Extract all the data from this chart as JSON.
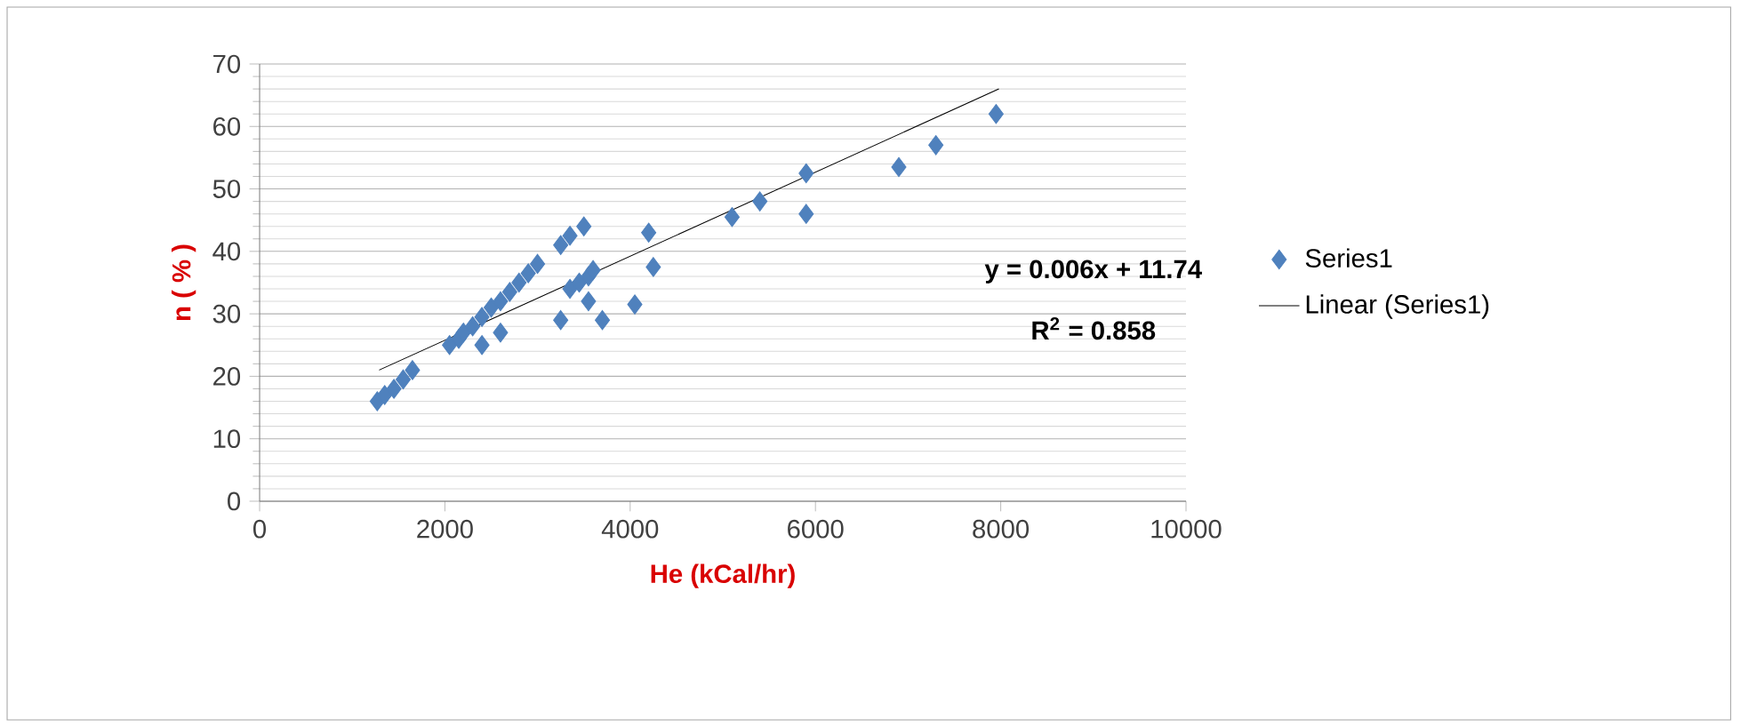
{
  "chart_data": {
    "type": "scatter",
    "xlabel": "He (kCal/hr)",
    "ylabel": "n ( % )",
    "xlim": [
      0,
      10000
    ],
    "ylim": [
      0,
      70
    ],
    "xticks": [
      0,
      2000,
      4000,
      6000,
      8000,
      10000
    ],
    "yticks": [
      0,
      10,
      20,
      30,
      40,
      50,
      60,
      70
    ],
    "grid": "y",
    "legend": "right",
    "marker": "diamond",
    "annotations": [
      "y = 0.006x + 11.74",
      "R$^{2}$ = 0.858"
    ],
    "series": [
      {
        "name": "Series1",
        "color": "#4f81bd",
        "x": [
          1270,
          1350,
          1450,
          1550,
          1650,
          2050,
          2150,
          2200,
          2300,
          2400,
          2400,
          2500,
          2600,
          2600,
          2700,
          2800,
          2900,
          3000,
          3250,
          3250,
          3350,
          3350,
          3450,
          3500,
          3550,
          3550,
          3600,
          3700,
          4050,
          4200,
          4250,
          5100,
          5400,
          5900,
          5900,
          6900,
          7300,
          7950
        ],
        "values": [
          16,
          17,
          18,
          19.5,
          21,
          25,
          26,
          27,
          28,
          29.5,
          25,
          31,
          32,
          27,
          33.5,
          35,
          36.5,
          38,
          41,
          29,
          42.5,
          34,
          35,
          44,
          36,
          32,
          37,
          29,
          31.5,
          43,
          37.5,
          45.5,
          48,
          52.5,
          46,
          53.5,
          57,
          62
        ]
      },
      {
        "name": "Linear (Series1)",
        "type": "line",
        "color": "#000000",
        "marker": "none",
        "x": [
          1290,
          7980
        ],
        "values": [
          21,
          66
        ]
      }
    ]
  }
}
